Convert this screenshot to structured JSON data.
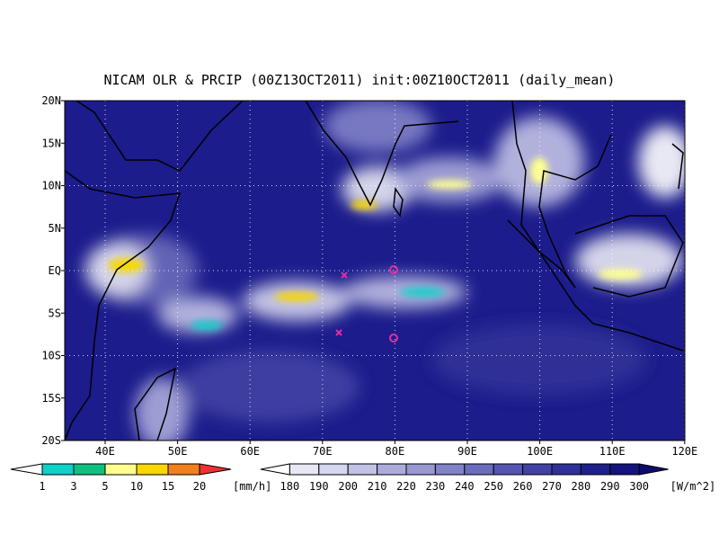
{
  "title": "NICAM OLR & PRCIP (00Z13OCT2011) init:00Z10OCT2011 (daily_mean)",
  "map": {
    "lat_labels": [
      "20N",
      "15N",
      "10N",
      "5N",
      "EQ",
      "5S",
      "10S",
      "15S",
      "20S"
    ],
    "lon_labels": [
      "40E",
      "50E",
      "60E",
      "70E",
      "80E",
      "90E",
      "100E",
      "110E",
      "120E"
    ]
  },
  "precip_colorbar": {
    "labels": [
      1,
      3,
      5,
      10,
      15,
      20
    ],
    "unit": "[mm/h]",
    "colors": [
      "#ffffff",
      "#10d0c8",
      "#10c080",
      "#ffff90",
      "#f8d800",
      "#f08020",
      "#f03030"
    ]
  },
  "olr_colorbar": {
    "labels": [
      180,
      190,
      200,
      210,
      220,
      230,
      240,
      250,
      260,
      270,
      280,
      290,
      300
    ],
    "unit": "[W/m^2]",
    "colors": [
      "#ffffff",
      "#e8e8f4",
      "#d6d6ee",
      "#c2c2e6",
      "#acacdc",
      "#9898d2",
      "#8282c8",
      "#6c6cbc",
      "#5656b0",
      "#4242a4",
      "#303098",
      "#20208a",
      "#14147c",
      "#0c0c70"
    ]
  }
}
